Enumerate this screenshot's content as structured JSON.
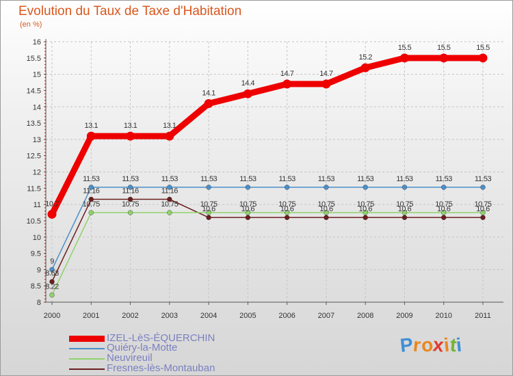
{
  "header": {
    "title": "Evolution du Taux de Taxe d'Habitation",
    "unit": "(en %)"
  },
  "brand": {
    "text": "Proxiti",
    "letters": [
      "P",
      "r",
      "o",
      "x",
      "i",
      "t",
      "i"
    ],
    "colors": [
      "#3d8fd6",
      "#e8871e",
      "#e8871e",
      "#e23b2f",
      "#e8871e",
      "#74b232",
      "#3d8fd6"
    ]
  },
  "chart_data": {
    "type": "line",
    "title": "Evolution du Taux de Taxe d'Habitation",
    "ylabel": "(en %)",
    "xlabel": "",
    "categories": [
      "2000",
      "2001",
      "2002",
      "2003",
      "2004",
      "2005",
      "2006",
      "2007",
      "2008",
      "2009",
      "2010",
      "2011"
    ],
    "ylim": [
      8,
      16
    ],
    "yticks": [
      "8",
      "8.5",
      "9",
      "9.5",
      "10",
      "10.5",
      "11",
      "11.5",
      "12",
      "12.5",
      "13",
      "13.5",
      "14",
      "14.5",
      "15",
      "15.5",
      "16"
    ],
    "series": [
      {
        "name": "Fresnes-lès-Montauban",
        "color": "#6b1e1e",
        "thick": false,
        "values": [
          8.63,
          11.16,
          11.16,
          11.16,
          10.6,
          10.6,
          10.6,
          10.6,
          10.6,
          10.6,
          10.6,
          10.6
        ],
        "labels": [
          "8.63",
          "11.16",
          "11.16",
          "11.16",
          "10.6",
          "10.6",
          "10.6",
          "10.6",
          "10.6",
          "10.6",
          "10.6",
          "10.6"
        ]
      },
      {
        "name": "Neuvireuil",
        "color": "#8fd26b",
        "thick": false,
        "values": [
          8.22,
          10.75,
          10.75,
          10.75,
          10.75,
          10.75,
          10.75,
          10.75,
          10.75,
          10.75,
          10.75,
          10.75
        ],
        "labels": [
          "8.22",
          "10.75",
          "10.75",
          "10.75",
          "10.75",
          "10.75",
          "10.75",
          "10.75",
          "10.75",
          "10.75",
          "10.75",
          "10.75"
        ]
      },
      {
        "name": "Quiéry-la-Motte",
        "color": "#4b8fc8",
        "thick": false,
        "values": [
          9,
          11.53,
          11.53,
          11.53,
          11.53,
          11.53,
          11.53,
          11.53,
          11.53,
          11.53,
          11.53,
          11.53
        ],
        "labels": [
          "9",
          "11.53",
          "11.53",
          "11.53",
          "11.53",
          "11.53",
          "11.53",
          "11.53",
          "11.53",
          "11.53",
          "11.53",
          "11.53"
        ]
      },
      {
        "name": "IZEL-LèS-ÉQUERCHIN",
        "color": "#ee0000",
        "thick": true,
        "values": [
          10.7,
          13.1,
          13.1,
          13.1,
          14.1,
          14.4,
          14.7,
          14.7,
          15.2,
          15.5,
          15.5,
          15.5
        ],
        "labels": [
          "10.7",
          "13.1",
          "13.1",
          "13.1",
          "14.1",
          "14.4",
          "14.7",
          "14.7",
          "15.2",
          "15.5",
          "15.5",
          "15.5"
        ]
      }
    ],
    "legend_order": [
      "IZEL-LèS-ÉQUERCHIN",
      "Quiéry-la-Motte",
      "Neuvireuil",
      "Fresnes-lès-Montauban"
    ],
    "legend_position": "bottom-left"
  }
}
